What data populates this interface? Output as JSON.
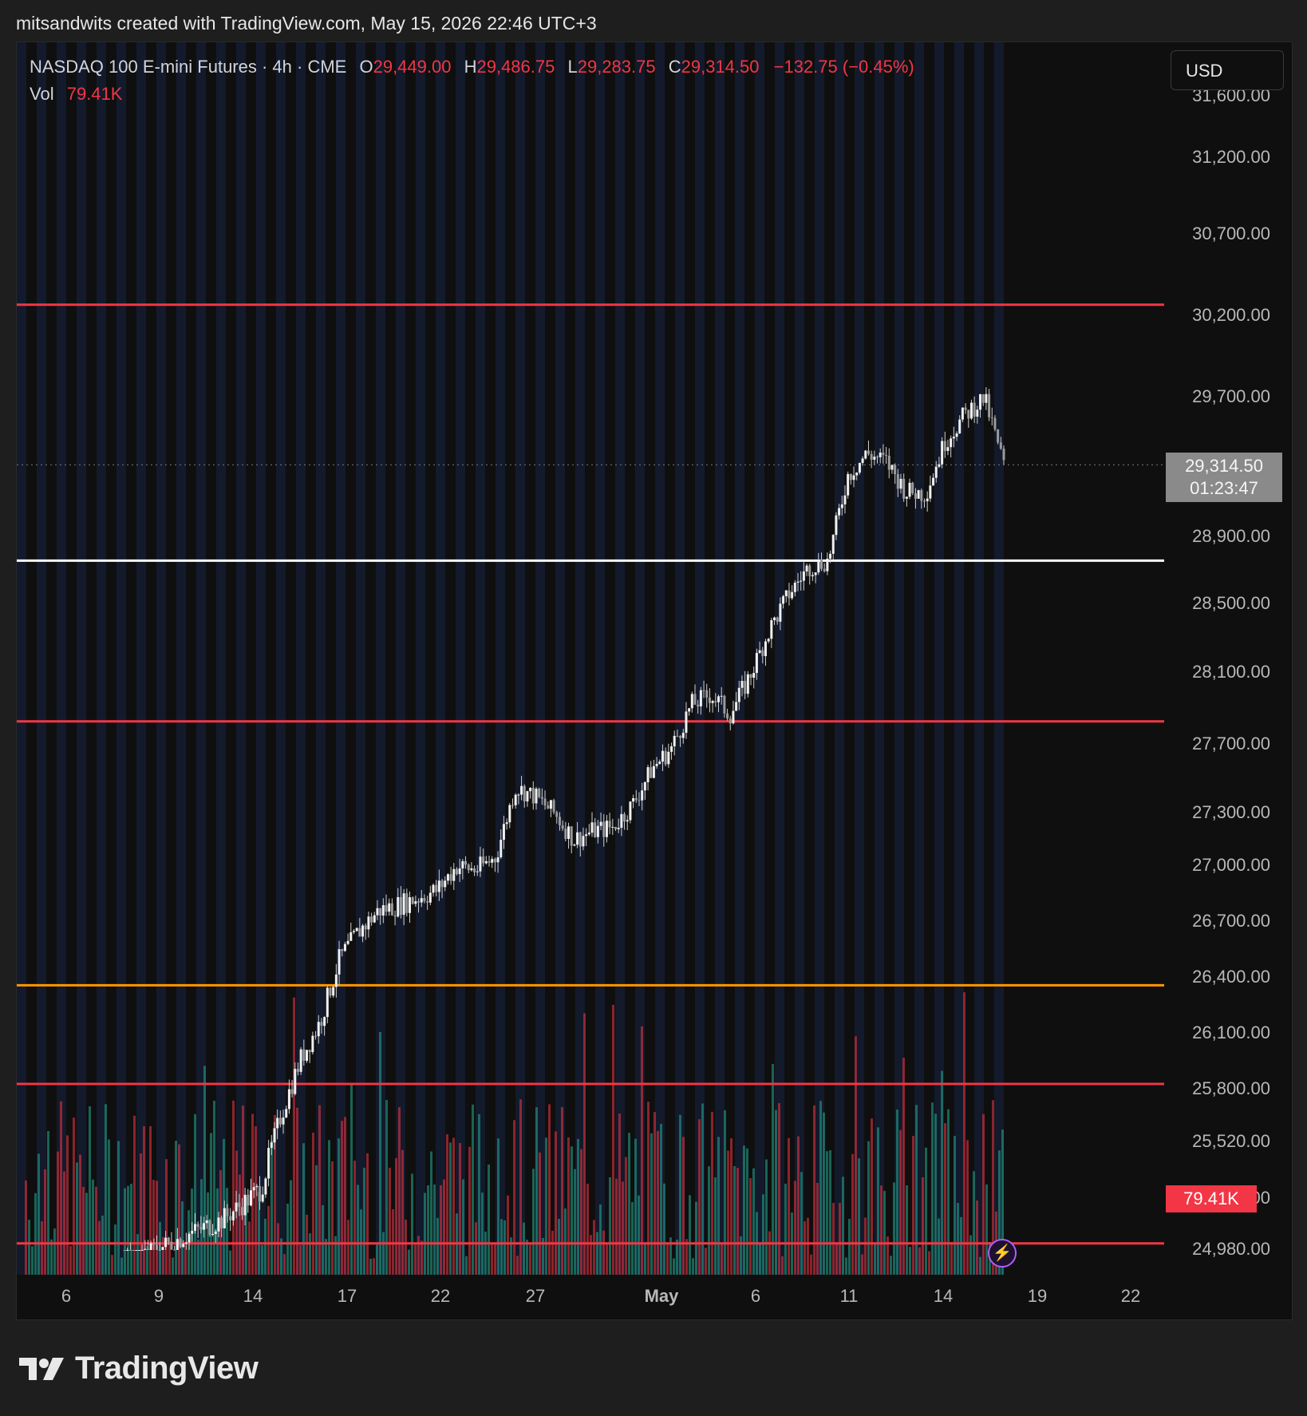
{
  "header": {
    "attribution": "mitsandwits created with TradingView.com, May 15, 2026 22:46 UTC+3"
  },
  "legend": {
    "symbol": "NASDAQ 100 E-mini Futures · 4h · CME",
    "open_label": "O",
    "open": "29,449.00",
    "high_label": "H",
    "high": "29,486.75",
    "low_label": "L",
    "low": "29,283.75",
    "close_label": "C",
    "close": "29,314.50",
    "change": "−132.75 (−0.45%)",
    "vol_label": "Vol",
    "vol": "79.41K"
  },
  "currency": "USD",
  "price_tag": {
    "price": "29,314.50",
    "countdown": "01:23:47"
  },
  "volume_tag": "79.41K",
  "brand": "TradingView",
  "colors": {
    "up": "#e6e6e6",
    "down": "#e6e6e6",
    "vol_up": "#22ab94",
    "vol_down": "#f23645",
    "resistance": "#f23645",
    "support": "#ffffff",
    "level_orange": "#ff9800"
  },
  "chart_data": {
    "type": "candlestick",
    "title": "NASDAQ 100 E-mini Futures · 4h · CME",
    "y_ticks": [
      "31,600.00",
      "31,200.00",
      "30,700.00",
      "30,200.00",
      "29,700.00",
      "28,900.00",
      "28,500.00",
      "28,100.00",
      "27,700.00",
      "27,300.00",
      "27,000.00",
      "26,700.00",
      "26,400.00",
      "26,100.00",
      "25,800.00",
      "25,520.00",
      "25,250.00",
      "24,980.00"
    ],
    "x_ticks": [
      "6",
      "9",
      "14",
      "17",
      "22",
      "27",
      "May",
      "6",
      "11",
      "14",
      "19",
      "22"
    ],
    "horizontal_levels": [
      {
        "price": 30270,
        "color": "red"
      },
      {
        "price": 28760,
        "color": "white"
      },
      {
        "price": 27830,
        "color": "red"
      },
      {
        "price": 26360,
        "color": "orange"
      },
      {
        "price": 25830,
        "color": "red"
      },
      {
        "price": 25015,
        "color": "red"
      }
    ],
    "close_path": [
      [
        0,
        24900
      ],
      [
        6,
        25050
      ],
      [
        10,
        25140
      ],
      [
        14,
        25300
      ],
      [
        16,
        25660
      ],
      [
        18,
        25960
      ],
      [
        20,
        26160
      ],
      [
        22,
        26500
      ],
      [
        24,
        26650
      ],
      [
        26,
        26760
      ],
      [
        28,
        26790
      ],
      [
        30,
        26830
      ],
      [
        32,
        26870
      ],
      [
        34,
        27000
      ],
      [
        36,
        26980
      ],
      [
        38,
        27050
      ],
      [
        40,
        27450
      ],
      [
        42,
        27400
      ],
      [
        44,
        27300
      ],
      [
        46,
        27150
      ],
      [
        48,
        27200
      ],
      [
        50,
        27220
      ],
      [
        52,
        27350
      ],
      [
        54,
        27560
      ],
      [
        56,
        27680
      ],
      [
        58,
        27920
      ],
      [
        60,
        27980
      ],
      [
        62,
        27870
      ],
      [
        64,
        28080
      ],
      [
        66,
        28350
      ],
      [
        68,
        28560
      ],
      [
        70,
        28720
      ],
      [
        72,
        28760
      ],
      [
        74,
        29250
      ],
      [
        76,
        29380
      ],
      [
        78,
        29330
      ],
      [
        80,
        29160
      ],
      [
        82,
        29150
      ],
      [
        84,
        29450
      ],
      [
        86,
        29600
      ],
      [
        88,
        29700
      ],
      [
        90,
        29314.5
      ]
    ],
    "volume_last": "79.41K"
  }
}
